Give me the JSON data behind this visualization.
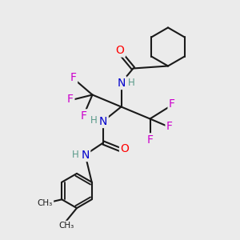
{
  "bg_color": "#ebebeb",
  "bond_color": "#1a1a1a",
  "atom_colors": {
    "O": "#ff0000",
    "N": "#0000cc",
    "F": "#cc00cc",
    "H": "#5a9a8a",
    "C": "#1a1a1a"
  },
  "font_size_atom": 10,
  "font_size_h": 8.5,
  "line_width": 1.5
}
